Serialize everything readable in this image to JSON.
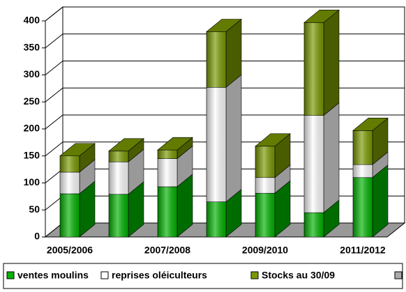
{
  "chart_data": {
    "type": "bar3d_stacked",
    "categories": [
      "2005/2006",
      null,
      "2007/2008",
      null,
      "2009/2010",
      null,
      "2011/2012"
    ],
    "series": [
      {
        "name": "ventes moulins",
        "color": "#00b400",
        "values": [
          80,
          79,
          93,
          65,
          81,
          45,
          110
        ]
      },
      {
        "name": "reprises oléiculteurs",
        "color": "#ffffff",
        "values": [
          40,
          60,
          52,
          212,
          29,
          180,
          24
        ]
      },
      {
        "name": "Stocks au 30/09",
        "color": "#7a9a00",
        "values": [
          30,
          20,
          16,
          103,
          58,
          172,
          63
        ]
      }
    ],
    "ylim": [
      0,
      400
    ],
    "yticks": [
      0,
      50,
      100,
      150,
      200,
      250,
      300,
      350,
      400
    ],
    "grid": true,
    "legend": "bottom"
  }
}
